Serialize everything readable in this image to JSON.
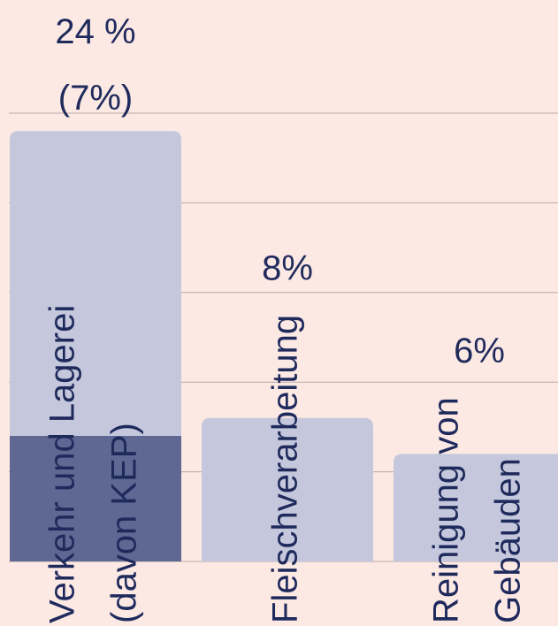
{
  "chart_data": {
    "type": "bar",
    "overlay": true,
    "categories": [
      [
        "Verkehr und Lagerei",
        "(davon KEP)"
      ],
      [
        "Fleischverarbeitung"
      ],
      [
        "Reinigung von",
        "Gebäuden"
      ]
    ],
    "series": [
      {
        "color": "#c5c8dc",
        "values": [
          24,
          8,
          6
        ],
        "value_labels": [
          "24 %",
          "8%",
          "6%"
        ]
      },
      {
        "color": "#5f6892",
        "values": [
          7,
          null,
          null
        ],
        "value_labels": [
          "(7%)",
          null,
          null
        ]
      }
    ],
    "ylim": [
      0,
      25
    ],
    "yticks": [
      0,
      5,
      10,
      15,
      20,
      25
    ],
    "grid": true
  }
}
